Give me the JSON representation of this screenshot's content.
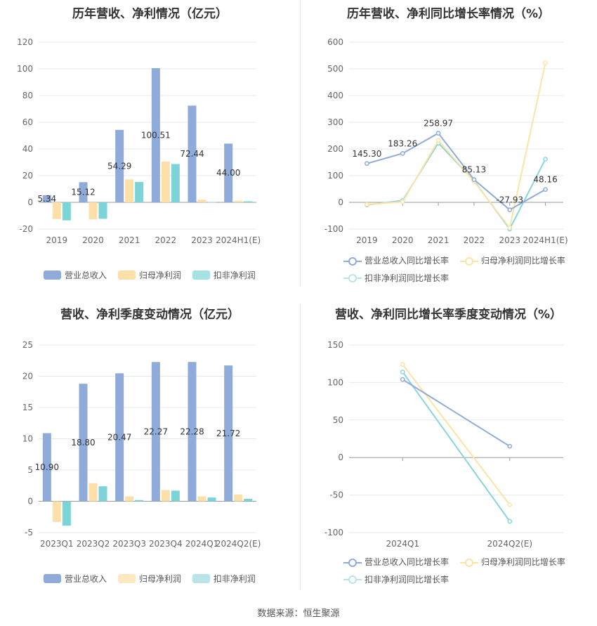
{
  "source": "数据来源：恒生聚源",
  "colors": {
    "revenue": "#8fabda",
    "parent": "#fcdfa9",
    "deducted": "#7dd4d6",
    "line_revenue": "#8fabda",
    "line_parent": "#fde3a6",
    "line_deducted": "#8ad5da"
  },
  "chart_data": [
    {
      "id": "annual-bar",
      "type": "bar",
      "title": "历年营收、净利情况（亿元）",
      "categories": [
        "2019",
        "2020",
        "2021",
        "2022",
        "2023",
        "2024H1(E)"
      ],
      "ylim": [
        -20,
        120
      ],
      "yticks": [
        -20,
        0,
        20,
        40,
        60,
        80,
        100,
        120
      ],
      "series": [
        {
          "name": "营业总收入",
          "values": [
            5.34,
            15.12,
            54.29,
            100.51,
            72.44,
            44.0
          ],
          "labels": [
            "5.34",
            "15.12",
            "54.29",
            "100.51",
            "72.44",
            "44.00"
          ]
        },
        {
          "name": "归母净利润",
          "values": [
            -12.5,
            -12.8,
            17.2,
            30.5,
            2.0,
            1.2
          ]
        },
        {
          "name": "扣非净利润",
          "values": [
            -13.5,
            -12.3,
            15.3,
            28.7,
            0.3,
            0.8
          ]
        }
      ],
      "legend": "bottom"
    },
    {
      "id": "annual-line",
      "type": "line",
      "title": "历年营收、净利同比增长率情况（%）",
      "categories": [
        "2019",
        "2020",
        "2021",
        "2022",
        "2023",
        "2024H1(E)"
      ],
      "ylim": [
        -100,
        600
      ],
      "yticks": [
        -100,
        0,
        100,
        200,
        300,
        400,
        500,
        600
      ],
      "series": [
        {
          "name": "营业总收入同比增长率",
          "values": [
            145.3,
            183.26,
            258.97,
            85.13,
            -27.93,
            48.16
          ],
          "labels": [
            "145.30",
            "183.26",
            "258.97",
            "85.13",
            "-27.93",
            "48.16"
          ]
        },
        {
          "name": "归母净利润同比增长率",
          "values": [
            -8,
            2,
            232,
            78,
            -95,
            523
          ]
        },
        {
          "name": "扣非净利润同比增长率",
          "values": [
            -10,
            7,
            222,
            81,
            -100,
            162
          ]
        }
      ],
      "legend": "bottom"
    },
    {
      "id": "quarter-bar",
      "type": "bar",
      "title": "营收、净利季度变动情况（亿元）",
      "categories": [
        "2023Q1",
        "2023Q2",
        "2023Q3",
        "2023Q4",
        "2024Q1",
        "2024Q2(E)"
      ],
      "ylim": [
        -5,
        25
      ],
      "yticks": [
        -5,
        0,
        5,
        10,
        15,
        20,
        25
      ],
      "series": [
        {
          "name": "营业总收入",
          "values": [
            10.9,
            18.8,
            20.47,
            22.27,
            22.28,
            21.72
          ],
          "labels": [
            "10.90",
            "18.80",
            "20.47",
            "22.27",
            "22.28",
            "21.72"
          ]
        },
        {
          "name": "归母净利润",
          "values": [
            -3.3,
            2.9,
            0.8,
            1.8,
            0.8,
            1.1
          ]
        },
        {
          "name": "扣非净利润",
          "values": [
            -3.9,
            2.4,
            0.2,
            1.7,
            0.6,
            0.4
          ]
        }
      ],
      "legend": "bottom"
    },
    {
      "id": "quarter-line",
      "type": "line",
      "title": "营收、净利同比增长率季度变动情况（%）",
      "categories": [
        "2024Q1",
        "2024Q2(E)"
      ],
      "ylim": [
        -100,
        150
      ],
      "yticks": [
        -100,
        -50,
        0,
        50,
        100,
        150
      ],
      "series": [
        {
          "name": "营业总收入同比增长率",
          "values": [
            104,
            15
          ]
        },
        {
          "name": "归母净利润同比增长率",
          "values": [
            124,
            -63
          ]
        },
        {
          "name": "扣非净利润同比增长率",
          "values": [
            114,
            -85
          ]
        }
      ],
      "legend": "bottom"
    }
  ]
}
